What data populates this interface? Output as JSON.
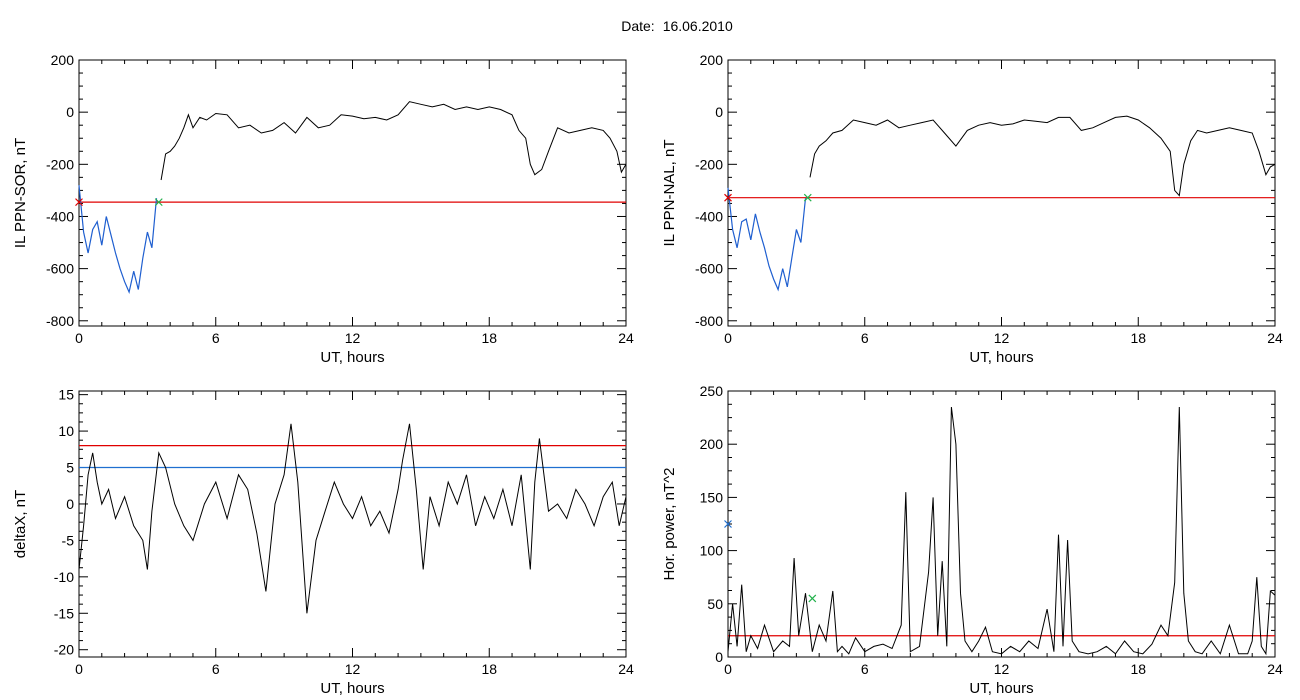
{
  "header": {
    "date_label": "Date:",
    "date_value": "16.06.2010"
  },
  "colors": {
    "data_line": "#000000",
    "threshold_red": "#e00000",
    "threshold_blue": "#1f6fd0",
    "event_blue": "#1f5fd0",
    "marker_green": "#22b14c"
  },
  "chart_data": [
    {
      "id": "ppn-sor",
      "type": "line",
      "ylabel": "IL PPN-SOR, nT",
      "xlabel": "UT, hours",
      "xlim": [
        0,
        24
      ],
      "ylim": [
        -820,
        200
      ],
      "xticks": [
        0,
        6,
        12,
        18,
        24
      ],
      "yticks": [
        200,
        0,
        -200,
        -400,
        -600,
        -800
      ],
      "threshold": {
        "value": -345,
        "color": "red"
      },
      "highlight_interval": [
        0,
        3.5
      ],
      "markers": [
        {
          "x": 0,
          "y": -345,
          "symbol": "x",
          "color": "red"
        },
        {
          "x": 3.5,
          "y": -345,
          "symbol": "x",
          "color": "green"
        }
      ],
      "series": [
        {
          "x": [
            0,
            0.2,
            0.4,
            0.6,
            0.8,
            1.0,
            1.2,
            1.4,
            1.6,
            1.8,
            2.0,
            2.2,
            2.4,
            2.6,
            2.8,
            3.0,
            3.2,
            3.4,
            3.6,
            3.8,
            4.0,
            4.2,
            4.4,
            4.6,
            4.8,
            5.0,
            5.3,
            5.6,
            6,
            6.5,
            7,
            7.5,
            8,
            8.5,
            9,
            9.5,
            10,
            10.5,
            11,
            11.5,
            12,
            12.5,
            13,
            13.5,
            14,
            14.5,
            15,
            15.5,
            16,
            16.5,
            17,
            17.5,
            18,
            18.5,
            19,
            19.3,
            19.6,
            19.8,
            20,
            20.3,
            20.6,
            21,
            21.5,
            22,
            22.5,
            23,
            23.3,
            23.6,
            23.8,
            24
          ],
          "y": [
            -280,
            -460,
            -540,
            -450,
            -420,
            -510,
            -400,
            -470,
            -540,
            -600,
            -650,
            -690,
            -610,
            -680,
            -560,
            -460,
            -520,
            -330,
            -260,
            -160,
            -150,
            -130,
            -100,
            -60,
            -10,
            -60,
            -20,
            -30,
            -5,
            -10,
            -60,
            -50,
            -80,
            -70,
            -40,
            -80,
            -20,
            -60,
            -50,
            -10,
            -15,
            -25,
            -20,
            -30,
            -10,
            40,
            30,
            20,
            30,
            10,
            20,
            10,
            20,
            10,
            -10,
            -70,
            -100,
            -200,
            -240,
            -220,
            -150,
            -60,
            -80,
            -70,
            -60,
            -70,
            -100,
            -150,
            -230,
            -200
          ]
        }
      ]
    },
    {
      "id": "ppn-nal",
      "type": "line",
      "ylabel": "IL PPN-NAL, nT",
      "xlabel": "UT, hours",
      "xlim": [
        0,
        24
      ],
      "ylim": [
        -820,
        200
      ],
      "xticks": [
        0,
        6,
        12,
        18,
        24
      ],
      "yticks": [
        200,
        0,
        -200,
        -400,
        -600,
        -800
      ],
      "threshold": {
        "value": -328,
        "color": "red"
      },
      "highlight_interval": [
        0,
        3.5
      ],
      "markers": [
        {
          "x": 0,
          "y": -328,
          "symbol": "x",
          "color": "red"
        },
        {
          "x": 3.5,
          "y": -328,
          "symbol": "x",
          "color": "green"
        }
      ],
      "series": [
        {
          "x": [
            0,
            0.2,
            0.4,
            0.6,
            0.8,
            1.0,
            1.2,
            1.4,
            1.6,
            1.8,
            2.0,
            2.2,
            2.4,
            2.6,
            2.8,
            3.0,
            3.2,
            3.4,
            3.6,
            3.8,
            4.0,
            4.3,
            4.6,
            5.0,
            5.5,
            6,
            6.5,
            7,
            7.5,
            8,
            8.5,
            9,
            9.5,
            10,
            10.5,
            11,
            11.5,
            12,
            12.5,
            13,
            13.5,
            14,
            14.5,
            15,
            15.5,
            16,
            16.5,
            17,
            17.5,
            18,
            18.5,
            19,
            19.4,
            19.6,
            19.8,
            20,
            20.3,
            20.6,
            21,
            21.5,
            22,
            22.5,
            23,
            23.3,
            23.6,
            23.8,
            24
          ],
          "y": [
            -290,
            -450,
            -520,
            -420,
            -410,
            -490,
            -390,
            -460,
            -520,
            -590,
            -640,
            -680,
            -600,
            -670,
            -560,
            -450,
            -500,
            -330,
            -250,
            -160,
            -130,
            -110,
            -80,
            -70,
            -30,
            -40,
            -50,
            -30,
            -60,
            -50,
            -40,
            -30,
            -80,
            -130,
            -70,
            -50,
            -40,
            -50,
            -45,
            -30,
            -35,
            -40,
            -20,
            -20,
            -70,
            -60,
            -40,
            -20,
            -15,
            -30,
            -60,
            -100,
            -150,
            -300,
            -320,
            -200,
            -110,
            -70,
            -80,
            -70,
            -60,
            -70,
            -80,
            -150,
            -240,
            -210,
            -200
          ]
        }
      ]
    },
    {
      "id": "deltax",
      "type": "line",
      "ylabel": "deltaX, nT",
      "xlabel": "UT, hours",
      "xlim": [
        0,
        24
      ],
      "ylim": [
        -21,
        15.5
      ],
      "xticks": [
        0,
        6,
        12,
        18,
        24
      ],
      "yticks": [
        15,
        10,
        5,
        0,
        -5,
        -10,
        -15,
        -20
      ],
      "thresholds": [
        {
          "value": 8,
          "color": "red"
        },
        {
          "value": 5,
          "color": "blue"
        }
      ],
      "series": [
        {
          "x": [
            0,
            0.2,
            0.4,
            0.6,
            0.8,
            1.0,
            1.3,
            1.6,
            2.0,
            2.4,
            2.8,
            3.0,
            3.2,
            3.5,
            3.8,
            4.2,
            4.6,
            5.0,
            5.5,
            6.0,
            6.5,
            7.0,
            7.4,
            7.8,
            8.2,
            8.6,
            9.0,
            9.3,
            9.6,
            10.0,
            10.4,
            10.8,
            11.2,
            11.6,
            12.0,
            12.4,
            12.8,
            13.2,
            13.6,
            14.0,
            14.2,
            14.5,
            14.8,
            15.1,
            15.4,
            15.8,
            16.2,
            16.6,
            17.0,
            17.4,
            17.8,
            18.2,
            18.6,
            19.0,
            19.4,
            19.8,
            20.0,
            20.2,
            20.6,
            21.0,
            21.4,
            21.8,
            22.2,
            22.6,
            23.0,
            23.4,
            23.7,
            24
          ],
          "y": [
            -9,
            -3,
            4,
            7,
            3,
            0,
            2,
            -2,
            1,
            -3,
            -5,
            -9,
            -1,
            7,
            5,
            0,
            -3,
            -5,
            0,
            3,
            -2,
            4,
            2,
            -4,
            -12,
            0,
            4,
            11,
            3,
            -15,
            -5,
            -1,
            3,
            0,
            -2,
            1,
            -3,
            -1,
            -4,
            2,
            6,
            11,
            2,
            -9,
            1,
            -3,
            3,
            0,
            4,
            -3,
            1,
            -2,
            2,
            -3,
            4,
            -9,
            3,
            9,
            -1,
            0,
            -2,
            2,
            0,
            -3,
            1,
            3,
            -3,
            1
          ]
        }
      ]
    },
    {
      "id": "hor-power",
      "type": "line",
      "ylabel": "Hor. power, nT^2",
      "xlabel": "UT, hours",
      "xlim": [
        0,
        24
      ],
      "ylim": [
        0,
        250
      ],
      "xticks": [
        0,
        6,
        12,
        18,
        24
      ],
      "yticks": [
        250,
        200,
        150,
        100,
        50,
        0
      ],
      "threshold": {
        "value": 20,
        "color": "red"
      },
      "markers": [
        {
          "x": 0,
          "y": 125,
          "symbol": "x",
          "color": "blue"
        },
        {
          "x": 3.7,
          "y": 55,
          "symbol": "x",
          "color": "green"
        }
      ],
      "series": [
        {
          "x": [
            0,
            0.2,
            0.4,
            0.6,
            0.8,
            1.0,
            1.3,
            1.6,
            2.0,
            2.4,
            2.7,
            2.9,
            3.1,
            3.4,
            3.7,
            4.0,
            4.3,
            4.6,
            4.8,
            5.0,
            5.3,
            5.6,
            6.0,
            6.4,
            6.8,
            7.2,
            7.6,
            7.8,
            8.0,
            8.4,
            8.8,
            9.0,
            9.2,
            9.4,
            9.6,
            9.8,
            10.0,
            10.2,
            10.4,
            10.7,
            11.0,
            11.3,
            11.6,
            12.0,
            12.4,
            12.8,
            13.2,
            13.6,
            14.0,
            14.3,
            14.5,
            14.7,
            14.9,
            15.1,
            15.4,
            15.8,
            16.2,
            16.6,
            17.0,
            17.4,
            17.8,
            18.2,
            18.6,
            19.0,
            19.3,
            19.6,
            19.8,
            20.0,
            20.2,
            20.5,
            20.8,
            21.2,
            21.6,
            22.0,
            22.4,
            22.8,
            23.0,
            23.2,
            23.4,
            23.6,
            23.8,
            24
          ],
          "y": [
            5,
            50,
            10,
            68,
            5,
            20,
            8,
            30,
            5,
            15,
            10,
            93,
            20,
            60,
            5,
            30,
            15,
            62,
            5,
            10,
            3,
            18,
            5,
            10,
            12,
            8,
            30,
            155,
            5,
            10,
            80,
            150,
            20,
            90,
            10,
            235,
            200,
            60,
            15,
            5,
            15,
            28,
            5,
            3,
            10,
            5,
            15,
            8,
            45,
            5,
            115,
            10,
            110,
            15,
            5,
            3,
            5,
            10,
            3,
            15,
            5,
            3,
            12,
            30,
            20,
            70,
            235,
            60,
            15,
            5,
            3,
            15,
            3,
            30,
            3,
            3,
            15,
            75,
            10,
            3,
            62,
            58
          ]
        }
      ]
    }
  ]
}
